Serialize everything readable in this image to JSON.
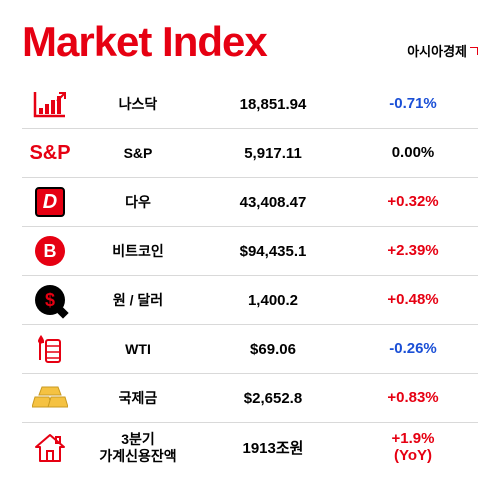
{
  "title": "Market Index",
  "title_color": "#e60012",
  "source": "아시아경제",
  "colors": {
    "positive": "#e60012",
    "negative": "#1a4fd6",
    "neutral": "#000000",
    "accent": "#e60012",
    "gold": "#f5c242",
    "divider": "#d9d9d9"
  },
  "rows": [
    {
      "icon": "chart",
      "name": "나스닥",
      "value": "18,851.94",
      "change": "-0.71%",
      "change_color": "#1a4fd6"
    },
    {
      "icon": "sp",
      "name": "S&P",
      "value": "5,917.11",
      "change": "0.00%",
      "change_color": "#000000"
    },
    {
      "icon": "dow",
      "name": "다우",
      "value": "43,408.47",
      "change": "+0.32%",
      "change_color": "#e60012"
    },
    {
      "icon": "btc",
      "name": "비트코인",
      "value": "$94,435.1",
      "change": "+2.39%",
      "change_color": "#e60012"
    },
    {
      "icon": "usd",
      "name": "원 / 달러",
      "value": "1,400.2",
      "change": "+0.48%",
      "change_color": "#e60012"
    },
    {
      "icon": "oil",
      "name": "WTI",
      "value": "$69.06",
      "change": "-0.26%",
      "change_color": "#1a4fd6"
    },
    {
      "icon": "gold",
      "name": "국제금",
      "value": "$2,652.8",
      "change": "+0.83%",
      "change_color": "#e60012"
    },
    {
      "icon": "house",
      "name": "3분기\n가계신용잔액",
      "value": "1913조원",
      "change": "+1.9%\n(YoY)",
      "change_color": "#e60012"
    }
  ]
}
